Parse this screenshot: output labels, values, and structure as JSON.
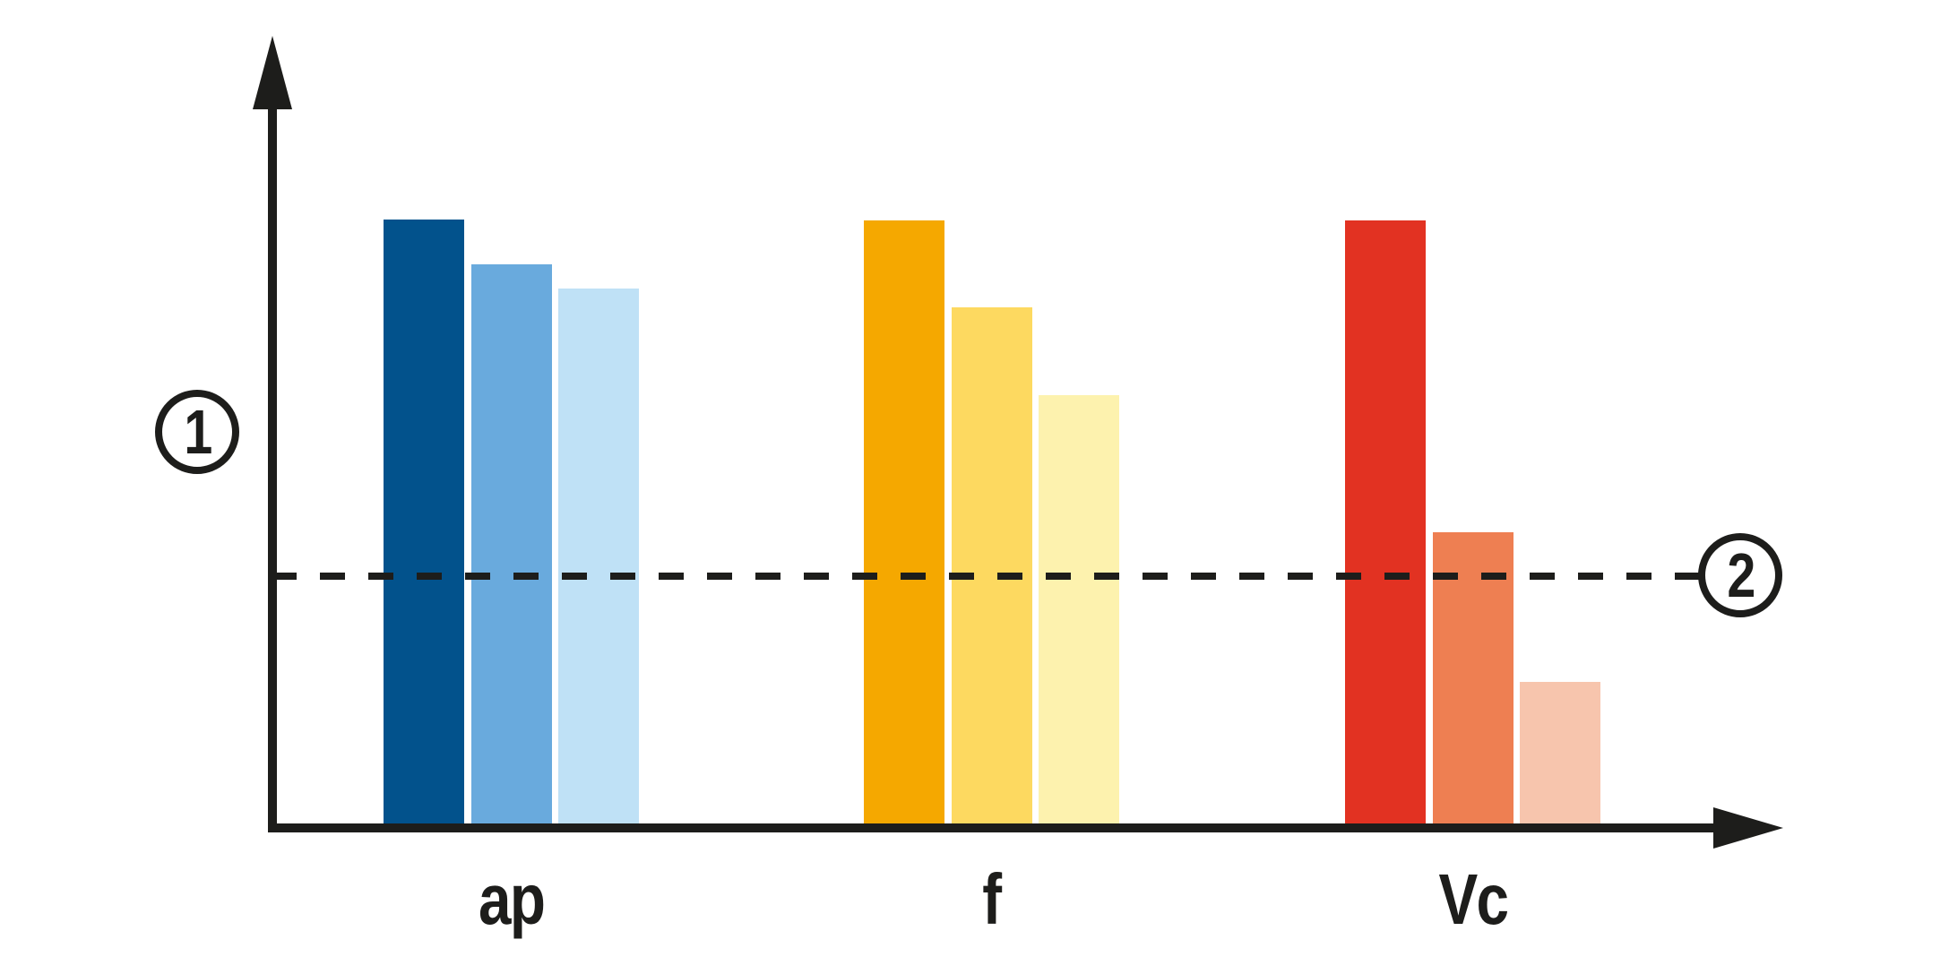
{
  "figure": {
    "background": "#ffffff",
    "ink_color": "#1d1d1b",
    "y_axis_marker": "1",
    "threshold_marker": "2"
  },
  "chart_data": {
    "type": "bar",
    "title": "",
    "xlabel": "",
    "ylabel": "",
    "categories": [
      "ap",
      "f",
      "Vc"
    ],
    "grid": false,
    "legend": "none",
    "y_axis": {
      "marker_label": "1",
      "range": [
        0,
        100
      ],
      "ticks": []
    },
    "threshold_line": {
      "marker_label": "2",
      "value": 41.4,
      "style": "dashed"
    },
    "groups": [
      {
        "label": "ap",
        "bars": [
          {
            "value": 100.0,
            "color": "#02528c"
          },
          {
            "value": 92.6,
            "color": "#69aadd"
          },
          {
            "value": 88.6,
            "color": "#bfe1f6"
          }
        ]
      },
      {
        "label": "f",
        "bars": [
          {
            "value": 99.9,
            "color": "#f5a800"
          },
          {
            "value": 85.6,
            "color": "#fdd960"
          },
          {
            "value": 71.1,
            "color": "#fdf2ae"
          }
        ]
      },
      {
        "label": "Vc",
        "bars": [
          {
            "value": 99.9,
            "color": "#e23222"
          },
          {
            "value": 48.6,
            "color": "#ee7f52"
          },
          {
            "value": 24.0,
            "color": "#f7c5ad"
          }
        ]
      }
    ]
  }
}
